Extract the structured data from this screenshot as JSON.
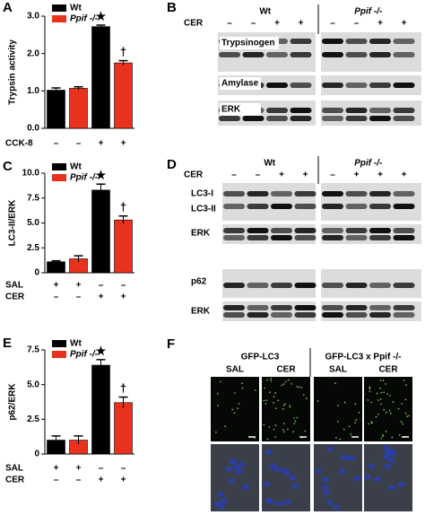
{
  "chart_data": [
    {
      "type": "bar",
      "panel": "A",
      "ylabel": "Trypsin activity",
      "ylim": [
        0,
        3
      ],
      "yticks": [
        {
          "value": 0,
          "label": "0.0"
        },
        {
          "value": 1,
          "label": "1.0"
        },
        {
          "value": 2,
          "label": "2.0"
        },
        {
          "value": 3,
          "label": "3.0"
        }
      ],
      "categories": [
        null,
        null,
        null,
        null
      ],
      "series": [
        {
          "name": "Wt",
          "color": "#000000",
          "values": [
            1.02,
            null,
            2.72,
            null
          ],
          "errors": [
            0.06,
            null,
            0.04,
            null
          ],
          "annotations": [
            null,
            null,
            "★",
            null
          ]
        },
        {
          "name": "Ppif -/-",
          "color": "#e8321e",
          "values": [
            null,
            1.07,
            null,
            1.75
          ],
          "errors": [
            null,
            0.04,
            null,
            0.06
          ],
          "annotations": [
            null,
            null,
            null,
            "†"
          ]
        }
      ],
      "treatments": [
        {
          "name": "CCK-8",
          "signs": [
            "–",
            "–",
            "+",
            "+"
          ]
        }
      ]
    },
    {
      "type": "bar",
      "panel": "C",
      "ylabel": "LC3-II/ERK",
      "ylim": [
        0,
        10
      ],
      "yticks": [
        0,
        2.5,
        {
          "value": 5,
          "label": "5.0"
        },
        7.5,
        {
          "value": 10,
          "label": "10.0"
        }
      ],
      "categories": [
        null,
        null,
        null,
        null
      ],
      "series": [
        {
          "name": "Wt",
          "color": "#000000",
          "values": [
            1.1,
            null,
            8.3,
            null
          ],
          "errors": [
            0.1,
            null,
            0.6,
            null
          ],
          "annotations": [
            null,
            null,
            "★",
            null
          ]
        },
        {
          "name": "Ppif -/-",
          "color": "#e8321e",
          "values": [
            null,
            1.4,
            null,
            5.3
          ],
          "errors": [
            null,
            0.3,
            null,
            0.4
          ],
          "annotations": [
            null,
            null,
            null,
            "†"
          ]
        }
      ],
      "treatments": [
        {
          "name": "SAL",
          "signs": [
            "+",
            "+",
            "–",
            "–"
          ]
        },
        {
          "name": "CER",
          "signs": [
            "–",
            "–",
            "+",
            "+"
          ]
        }
      ]
    },
    {
      "type": "bar",
      "panel": "E",
      "ylabel": "p62/ERK",
      "ylim": [
        0,
        7.5
      ],
      "yticks": [
        0,
        2.5,
        {
          "value": 5,
          "label": "5.0"
        },
        7.5
      ],
      "categories": [
        null,
        null,
        null,
        null
      ],
      "series": [
        {
          "name": "Wt",
          "color": "#000000",
          "values": [
            1.0,
            null,
            6.4,
            null
          ],
          "errors": [
            0.3,
            null,
            0.4,
            null
          ],
          "annotations": [
            null,
            null,
            "★",
            null
          ]
        },
        {
          "name": "Ppif -/-",
          "color": "#e8321e",
          "values": [
            null,
            1.0,
            null,
            3.7
          ],
          "errors": [
            null,
            0.3,
            null,
            0.4
          ],
          "annotations": [
            null,
            null,
            null,
            "†"
          ]
        }
      ],
      "treatments": [
        {
          "name": "SAL",
          "signs": [
            "+",
            "+",
            "–",
            "–"
          ]
        },
        {
          "name": "CER",
          "signs": [
            "–",
            "–",
            "+",
            "+"
          ]
        }
      ]
    }
  ],
  "blots": [
    {
      "panel": "B",
      "groups": [
        "Wt",
        "Ppif -/-"
      ],
      "treatment": "CER",
      "signs": [
        "–",
        "–",
        "+",
        "+",
        "–",
        "–",
        "+",
        "+"
      ],
      "bands": [
        "Trypsinogen",
        "Amylase",
        "ERK"
      ]
    },
    {
      "panel": "D",
      "groups": [
        "Wt",
        "Ppif -/-"
      ],
      "treatment": "CER",
      "signs": [
        "–",
        "–",
        "+",
        "+",
        "–",
        "+",
        "+",
        "+"
      ],
      "bands": [
        "LC3-I",
        "LC3-II",
        "ERK",
        "p62",
        "ERK"
      ]
    }
  ],
  "micrographs": {
    "panel": "F",
    "groups": [
      "GFP-LC3",
      "GFP-LC3 x Ppif -/-"
    ],
    "columns": [
      "SAL",
      "CER",
      "SAL",
      "CER"
    ]
  }
}
